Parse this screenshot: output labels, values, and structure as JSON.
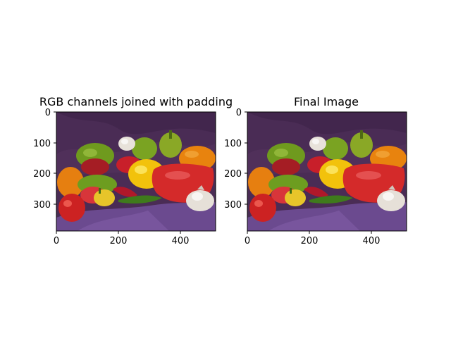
{
  "figure": {
    "panels": [
      {
        "title": "RGB channels joined with padding",
        "x_ticks": [
          "0",
          "200",
          "400"
        ],
        "y_ticks": [
          "0",
          "100",
          "200",
          "300"
        ]
      },
      {
        "title": "Final Image",
        "x_ticks": [
          "0",
          "200",
          "400"
        ],
        "y_ticks": [
          "0",
          "100",
          "200",
          "300"
        ]
      }
    ],
    "image_subject": "peppers",
    "colors": {
      "backdrop": "#4a2c55",
      "cloth": "#6b4a8f",
      "red": "#d42a2a",
      "green": "#6f9a1e",
      "yellow": "#f2c20c",
      "orange": "#e8830e",
      "garlic": "#e8e2da"
    }
  }
}
